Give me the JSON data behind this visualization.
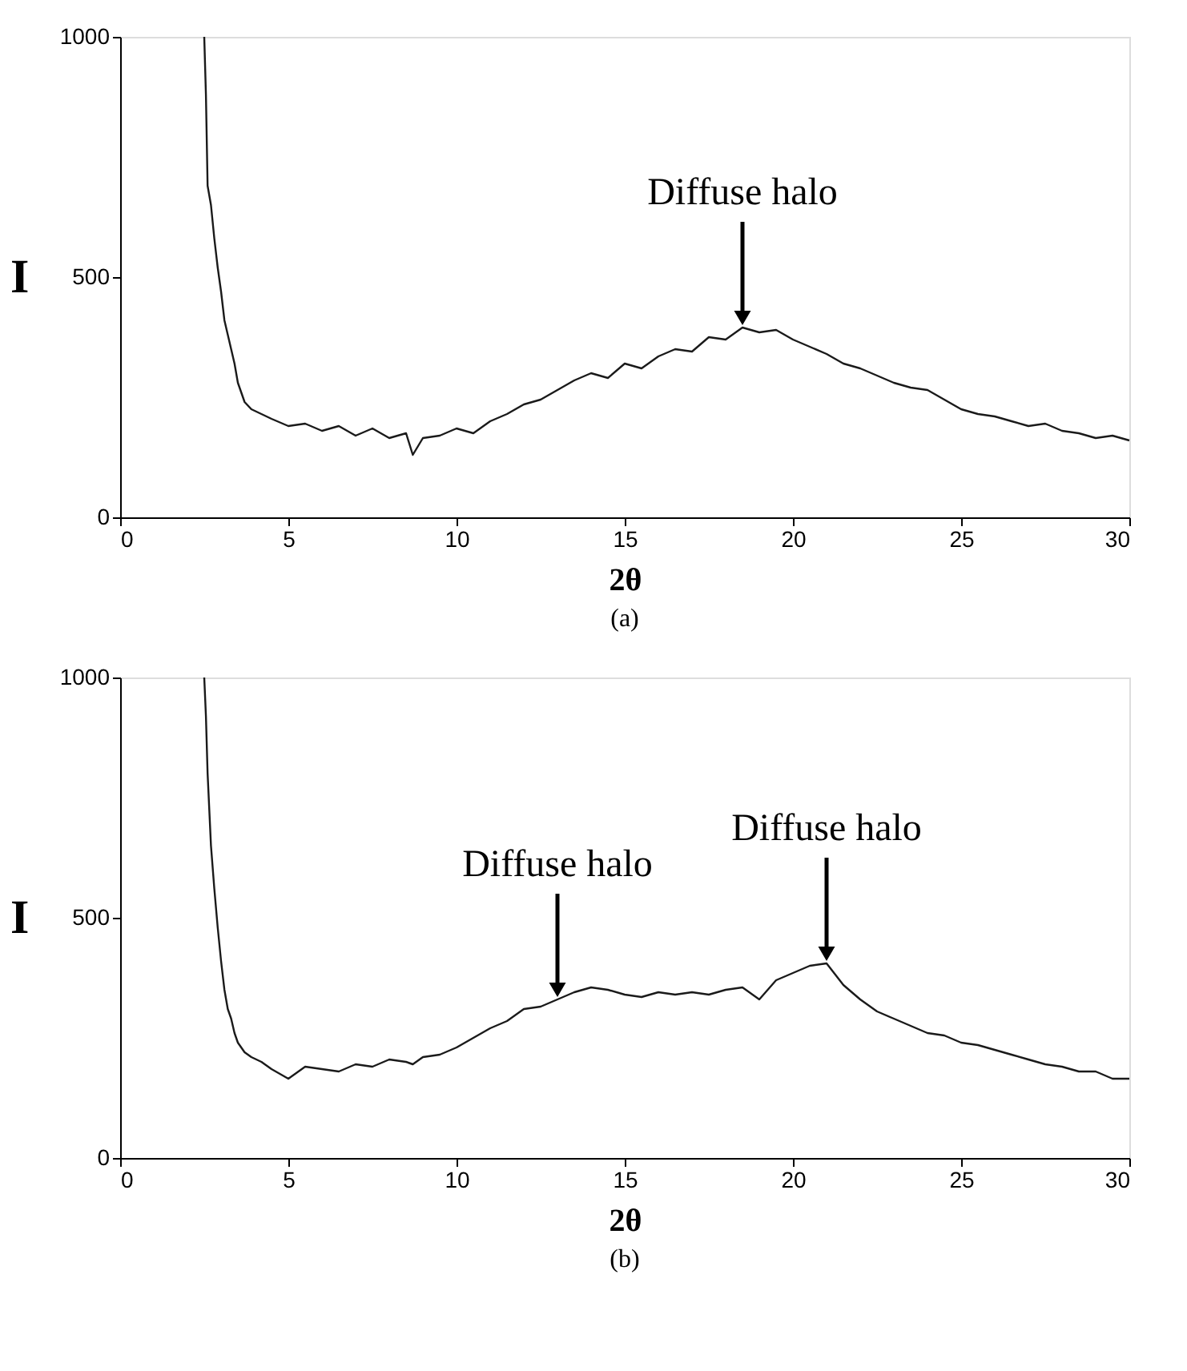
{
  "chart_data": [
    {
      "type": "line",
      "xlabel": "2θ",
      "ylabel": "I",
      "xlim": [
        0,
        30
      ],
      "xticks": [
        0,
        5,
        10,
        15,
        20,
        25,
        30
      ],
      "ylim": [
        0,
        1000
      ],
      "yticks": [
        0,
        500,
        1000
      ],
      "grid": false,
      "x": [
        2.5,
        2.55,
        2.6,
        2.7,
        2.8,
        2.9,
        3.0,
        3.1,
        3.2,
        3.3,
        3.4,
        3.5,
        3.7,
        3.9,
        4.2,
        4.5,
        5,
        5.5,
        6,
        6.5,
        7,
        7.5,
        8,
        8.5,
        8.7,
        9,
        9.5,
        10,
        10.5,
        11,
        11.5,
        12,
        12.5,
        13,
        13.5,
        14,
        14.5,
        15,
        15.5,
        16,
        16.5,
        17,
        17.5,
        18,
        18.5,
        19,
        19.5,
        20,
        20.5,
        21,
        21.5,
        22,
        22.5,
        23,
        23.5,
        24,
        24.5,
        25,
        25.5,
        26,
        26.5,
        27,
        27.5,
        28,
        28.5,
        29,
        29.5,
        30
      ],
      "series": [
        {
          "color": "#1a1a1a",
          "values": [
            1000,
            880,
            690,
            650,
            580,
            520,
            470,
            410,
            380,
            350,
            320,
            280,
            240,
            225,
            215,
            205,
            190,
            195,
            180,
            190,
            170,
            185,
            165,
            175,
            130,
            165,
            170,
            185,
            175,
            200,
            215,
            235,
            245,
            265,
            285,
            300,
            290,
            320,
            310,
            335,
            350,
            345,
            375,
            370,
            395,
            385,
            390,
            370,
            355,
            340,
            320,
            310,
            295,
            280,
            270,
            265,
            245,
            225,
            215,
            210,
            200,
            190,
            195,
            180,
            175,
            165,
            170,
            160
          ]
        }
      ],
      "annotations": [
        {
          "text": "Diffuse halo",
          "x": 18.5,
          "y": 395
        },
        "(a)"
      ]
    },
    {
      "type": "line",
      "xlabel": "2θ",
      "ylabel": "I",
      "xlim": [
        0,
        30
      ],
      "xticks": [
        0,
        5,
        10,
        15,
        20,
        25,
        30
      ],
      "ylim": [
        0,
        1000
      ],
      "yticks": [
        0,
        500,
        1000
      ],
      "grid": false,
      "x": [
        2.5,
        2.55,
        2.6,
        2.7,
        2.8,
        2.9,
        3.0,
        3.1,
        3.2,
        3.3,
        3.4,
        3.5,
        3.7,
        3.9,
        4.2,
        4.5,
        5,
        5.5,
        6,
        6.5,
        7,
        7.5,
        8,
        8.5,
        8.7,
        9,
        9.5,
        10,
        10.5,
        11,
        11.5,
        12,
        12.5,
        13,
        13.5,
        14,
        14.5,
        15,
        15.5,
        16,
        16.5,
        17,
        17.5,
        18,
        18.5,
        19,
        19.5,
        20,
        20.5,
        21,
        21.5,
        22,
        22.5,
        23,
        23.5,
        24,
        24.5,
        25,
        25.5,
        26,
        26.5,
        27,
        27.5,
        28,
        28.5,
        29,
        29.5,
        30
      ],
      "series": [
        {
          "color": "#1a1a1a",
          "values": [
            1000,
            920,
            800,
            650,
            560,
            480,
            410,
            350,
            310,
            290,
            260,
            240,
            220,
            210,
            200,
            185,
            165,
            190,
            185,
            180,
            195,
            190,
            205,
            200,
            195,
            210,
            215,
            230,
            250,
            270,
            285,
            310,
            315,
            330,
            345,
            355,
            350,
            340,
            335,
            345,
            340,
            345,
            340,
            350,
            355,
            330,
            370,
            385,
            400,
            405,
            360,
            330,
            305,
            290,
            275,
            260,
            255,
            240,
            235,
            225,
            215,
            205,
            195,
            190,
            180,
            180,
            165,
            165
          ]
        }
      ],
      "annotations": [
        {
          "text": "Diffuse halo",
          "x": 13,
          "y": 330
        },
        {
          "text": "Diffuse halo",
          "x": 21,
          "y": 405
        },
        "(b)"
      ]
    }
  ]
}
